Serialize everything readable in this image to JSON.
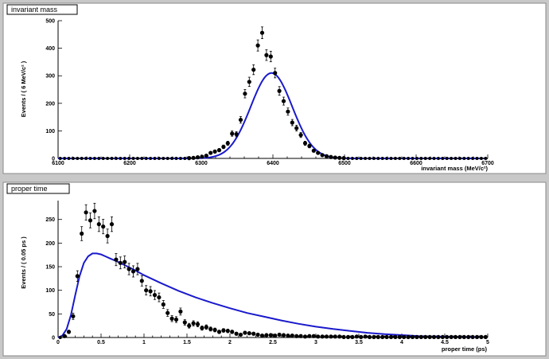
{
  "chart_data": [
    {
      "type": "scatter",
      "title": "invariant mass",
      "xlabel": "invariant mass (MeV/c²)",
      "ylabel": "Events / ( 6 MeV/c² )",
      "xlim": [
        6100,
        6700
      ],
      "ylim": [
        0,
        500
      ],
      "xticks": [
        "6100",
        "6200",
        "6300",
        "6400",
        "6500",
        "6600",
        "6700"
      ],
      "yticks": [
        "0",
        "100",
        "200",
        "300",
        "400",
        "500"
      ],
      "x_tick_values": [
        6100,
        6200,
        6300,
        6400,
        6500,
        6600,
        6700
      ],
      "y_tick_values": [
        0,
        100,
        200,
        300,
        400,
        500
      ],
      "fit_color": "#1a1acc",
      "fit": {
        "model": "gaussian",
        "mean": 6398,
        "sigma": 29,
        "peak": 310
      },
      "series": [
        {
          "x": [
            6103,
            6109,
            6115,
            6121,
            6127,
            6133,
            6139,
            6145,
            6151,
            6157,
            6163,
            6169,
            6175,
            6181,
            6187,
            6193,
            6199,
            6205,
            6211,
            6217,
            6223,
            6229,
            6235,
            6241,
            6247,
            6253,
            6259,
            6265,
            6271,
            6277,
            6283,
            6289,
            6295,
            6301,
            6307,
            6313,
            6319,
            6325,
            6331,
            6337,
            6343,
            6349,
            6355,
            6361,
            6367,
            6373,
            6379,
            6385,
            6391,
            6397,
            6403,
            6409,
            6415,
            6421,
            6427,
            6433,
            6439,
            6445,
            6451,
            6457,
            6463,
            6469,
            6475,
            6481,
            6487,
            6493,
            6499,
            6505,
            6511,
            6517,
            6523,
            6529,
            6535,
            6541,
            6547,
            6553,
            6559,
            6565,
            6571,
            6577,
            6583,
            6589,
            6595,
            6601,
            6607,
            6613,
            6619,
            6625,
            6631,
            6637,
            6643,
            6649,
            6655,
            6661,
            6667,
            6673,
            6679,
            6685,
            6691,
            6697
          ],
          "y": [
            0,
            0,
            0,
            0,
            0,
            0,
            0,
            0,
            0,
            0,
            0,
            0,
            0,
            0,
            0,
            0,
            0,
            0,
            0,
            0,
            0,
            0,
            0,
            0,
            0,
            0,
            0,
            0,
            0,
            0,
            1,
            2,
            4,
            6,
            10,
            20,
            25,
            30,
            42,
            55,
            90,
            88,
            140,
            235,
            278,
            322,
            410,
            456,
            375,
            370,
            310,
            245,
            208,
            170,
            130,
            110,
            85,
            55,
            45,
            28,
            20,
            12,
            8,
            5,
            3,
            2,
            1,
            0,
            0,
            0,
            0,
            0,
            0,
            0,
            0,
            0,
            0,
            0,
            0,
            0,
            0,
            0,
            0,
            0,
            0,
            0,
            0,
            0,
            0,
            0,
            0,
            0,
            0,
            0,
            0,
            0,
            0,
            0,
            0,
            0
          ]
        }
      ]
    },
    {
      "type": "scatter",
      "title": "proper time",
      "xlabel": "proper time (ps)",
      "ylabel": "Events / ( 0.05 ps )",
      "xlim": [
        0,
        5
      ],
      "ylim": [
        0,
        290
      ],
      "xticks": [
        "0",
        "0.5",
        "1",
        "1.5",
        "2",
        "2.5",
        "3",
        "3.5",
        "4",
        "4.5",
        "5"
      ],
      "yticks": [
        "0",
        "50",
        "100",
        "150",
        "200",
        "250"
      ],
      "x_tick_values": [
        0,
        0.5,
        1,
        1.5,
        2,
        2.5,
        3,
        3.5,
        4,
        4.5,
        5
      ],
      "y_tick_values": [
        0,
        50,
        100,
        150,
        200,
        250
      ],
      "fit_color": "#1a1acc",
      "fit": {
        "model": "exp_conv",
        "x": [
          0,
          0.05,
          0.1,
          0.15,
          0.2,
          0.25,
          0.3,
          0.35,
          0.4,
          0.45,
          0.5,
          0.55,
          0.6,
          0.7,
          0.8,
          0.9,
          1.0,
          1.2,
          1.4,
          1.6,
          1.8,
          2.0,
          2.2,
          2.4,
          2.6,
          2.8,
          3.0,
          3.2,
          3.4,
          3.6,
          3.8,
          4.0,
          4.2,
          4.4,
          4.6,
          4.8,
          5.0
        ],
        "y": [
          0,
          4,
          18,
          48,
          90,
          130,
          158,
          172,
          178,
          178,
          176,
          172,
          168,
          160,
          151,
          142,
          132,
          115,
          99,
          85,
          73,
          62,
          52,
          44,
          36,
          29,
          23,
          18,
          14,
          10,
          7,
          5,
          3,
          2,
          1.5,
          1,
          0.8
        ]
      },
      "series": [
        {
          "x": [
            0.025,
            0.075,
            0.125,
            0.175,
            0.225,
            0.275,
            0.325,
            0.375,
            0.425,
            0.475,
            0.525,
            0.575,
            0.625,
            0.675,
            0.725,
            0.775,
            0.825,
            0.875,
            0.925,
            0.975,
            1.025,
            1.075,
            1.125,
            1.175,
            1.225,
            1.275,
            1.325,
            1.375,
            1.425,
            1.475,
            1.525,
            1.575,
            1.625,
            1.675,
            1.725,
            1.775,
            1.825,
            1.875,
            1.925,
            1.975,
            2.025,
            2.075,
            2.125,
            2.175,
            2.225,
            2.275,
            2.325,
            2.375,
            2.425,
            2.475,
            2.525,
            2.575,
            2.625,
            2.675,
            2.725,
            2.775,
            2.825,
            2.875,
            2.925,
            2.975,
            3.025,
            3.075,
            3.125,
            3.175,
            3.225,
            3.275,
            3.325,
            3.375,
            3.425,
            3.475,
            3.525,
            3.575,
            3.625,
            3.675,
            3.725,
            3.775,
            3.825,
            3.875,
            3.925,
            3.975,
            4.025,
            4.075,
            4.125,
            4.175,
            4.225,
            4.275,
            4.325,
            4.375,
            4.425,
            4.475,
            4.525,
            4.575,
            4.625,
            4.675,
            4.725,
            4.775,
            4.825,
            4.875,
            4.925,
            4.975
          ],
          "y": [
            0,
            3,
            12,
            45,
            130,
            220,
            265,
            248,
            268,
            240,
            235,
            215,
            240,
            165,
            158,
            160,
            145,
            140,
            145,
            120,
            100,
            98,
            90,
            85,
            70,
            52,
            40,
            38,
            55,
            32,
            25,
            30,
            28,
            20,
            22,
            18,
            16,
            12,
            15,
            14,
            12,
            8,
            6,
            10,
            9,
            8,
            6,
            4,
            5,
            5,
            4,
            6,
            5,
            4,
            4,
            3,
            3,
            2,
            3,
            3,
            2,
            2,
            2,
            2,
            2,
            2,
            1,
            1,
            1,
            2,
            1,
            2,
            1,
            1,
            1,
            1,
            1,
            1,
            1,
            1,
            1,
            1,
            1,
            1,
            1,
            1,
            1,
            1,
            1,
            1,
            1,
            1,
            1,
            1,
            1,
            1,
            1,
            1,
            1,
            1
          ]
        }
      ]
    }
  ]
}
